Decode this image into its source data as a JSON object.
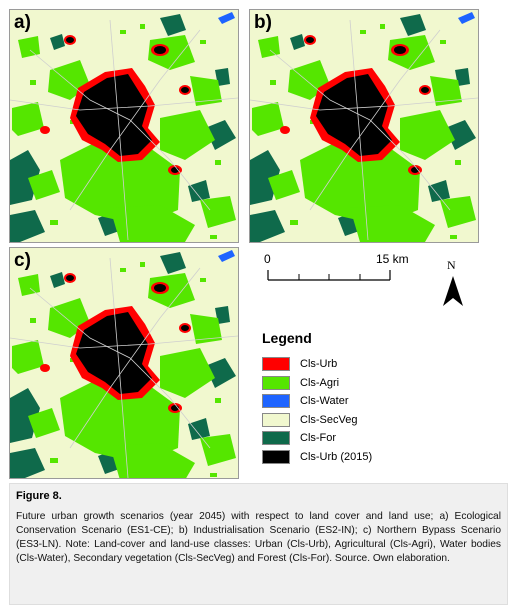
{
  "panels": [
    {
      "label": "a)"
    },
    {
      "label": "b)"
    },
    {
      "label": "c)"
    }
  ],
  "scale_bar": {
    "start": "0",
    "end": "15 km"
  },
  "north_arrow": {
    "label": "N"
  },
  "legend": {
    "title": "Legend",
    "items": [
      {
        "label": "Cls-Urb",
        "color": "#ff0000"
      },
      {
        "label": "Cls-Agri",
        "color": "#55e600"
      },
      {
        "label": "Cls-Water",
        "color": "#1e64ff"
      },
      {
        "label": "Cls-SecVeg",
        "color": "#f1f8cf"
      },
      {
        "label": "Cls-For",
        "color": "#0f6a4b"
      },
      {
        "label": "Cls-Urb (2015)",
        "color": "#000000"
      }
    ]
  },
  "caption": {
    "figure_number": "Figure 8.",
    "text": "Future urban growth scenarios (year 2045) with respect to land cover and land use; a) Ecological Conservation Scenario (ES1-CE); b) Industrialisation Scenario (ES2-IN); c) Northern Bypass Scenario (ES3-LN). Note: Land-cover and land-use classes: Urban (Cls-Urb), Agricultural (Cls-Agri), Water bodies (Cls-Water), Secondary vegetation (Cls-SecVeg) and Forest (Cls-For). Source. Own elaboration."
  }
}
